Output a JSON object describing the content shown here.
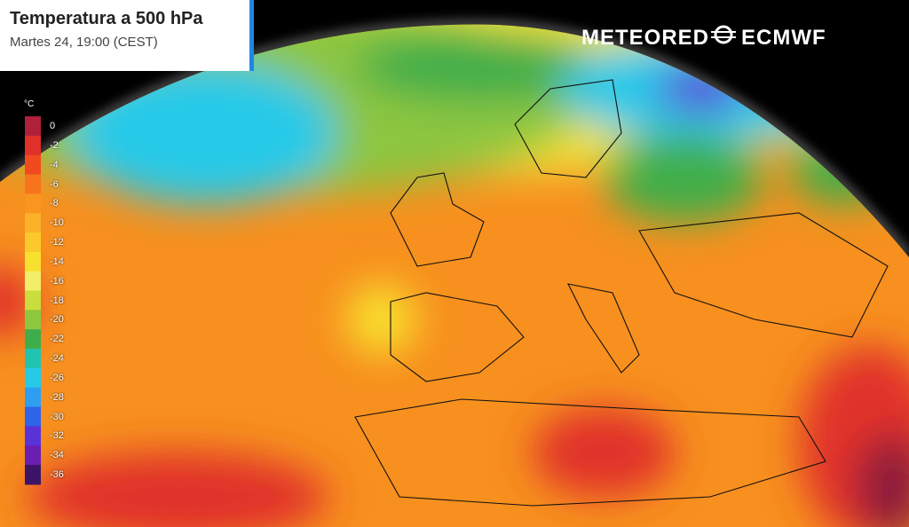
{
  "header": {
    "title": "Temperatura a 500 hPa",
    "subtitle": "Martes 24, 19:00 (CEST)"
  },
  "brand": {
    "meteored": "METEORED",
    "ecmwf": "ECMWF"
  },
  "legend": {
    "unit": "°C",
    "ticks": [
      0,
      -2,
      -4,
      -6,
      -8,
      -10,
      -12,
      -14,
      -16,
      -18,
      -20,
      -22,
      -24,
      -26,
      -28,
      -30,
      -32,
      -34,
      -36
    ],
    "colors": [
      "#b0203a",
      "#e0302a",
      "#f04a1e",
      "#f7741c",
      "#fa951f",
      "#fbb12a",
      "#fbc92b",
      "#f8e12e",
      "#f3ee6a",
      "#c9dd3c",
      "#8dc63f",
      "#3fae4a",
      "#22c4b0",
      "#26c9e8",
      "#2e9ff0",
      "#2f63e8",
      "#5a33d8",
      "#6a1fb0",
      "#3c1466"
    ]
  }
}
